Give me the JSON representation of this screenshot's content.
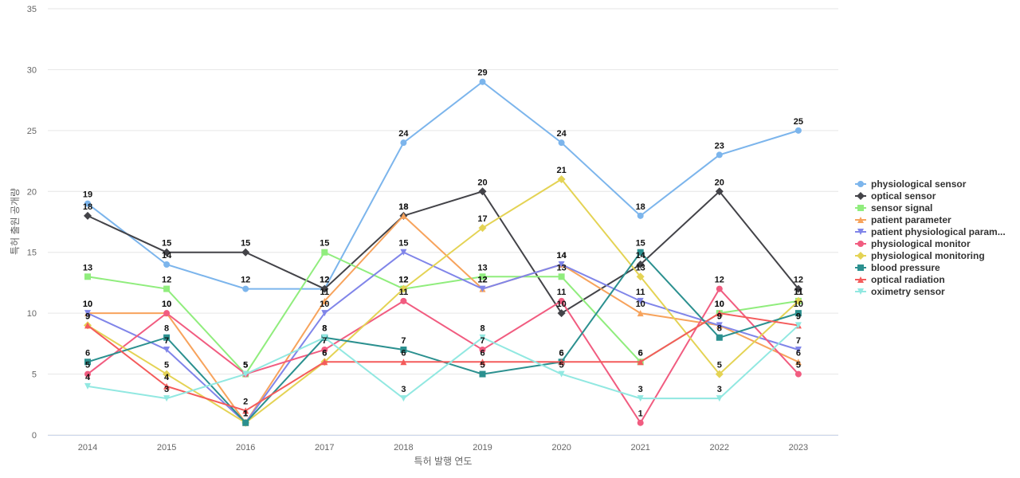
{
  "chart_data": {
    "type": "line",
    "title": "",
    "xlabel": "특허 발행 연도",
    "ylabel": "특허 출원 공개량",
    "ylim": [
      0,
      35
    ],
    "yticks": [
      0,
      5,
      10,
      15,
      20,
      25,
      30,
      35
    ],
    "grid": true,
    "legend_position": "right",
    "x": [
      "2014",
      "2015",
      "2016",
      "2017",
      "2018",
      "2019",
      "2020",
      "2021",
      "2022",
      "2023"
    ],
    "series": [
      {
        "name": "physiological sensor",
        "color": "#7cb5ec",
        "marker": "circle",
        "values": [
          19,
          14,
          12,
          12,
          24,
          29,
          24,
          18,
          23,
          25
        ]
      },
      {
        "name": "optical sensor",
        "color": "#434348",
        "marker": "diamond",
        "values": [
          18,
          15,
          15,
          12,
          18,
          20,
          10,
          14,
          20,
          12
        ]
      },
      {
        "name": "sensor signal",
        "color": "#90ed7d",
        "marker": "square",
        "values": [
          13,
          12,
          5,
          15,
          12,
          13,
          13,
          6,
          10,
          11
        ]
      },
      {
        "name": "patient parameter",
        "color": "#f7a35c",
        "marker": "triangle",
        "values": [
          10,
          10,
          1,
          11,
          18,
          12,
          14,
          10,
          9,
          6
        ]
      },
      {
        "name": "patient physiological param...",
        "color": "#8085e9",
        "marker": "triangle-down",
        "values": [
          10,
          7,
          1,
          10,
          15,
          12,
          14,
          11,
          9,
          7
        ]
      },
      {
        "name": "physiological monitor",
        "color": "#f15c80",
        "marker": "circle",
        "values": [
          5,
          10,
          5,
          7,
          11,
          7,
          11,
          1,
          12,
          5
        ]
      },
      {
        "name": "physiological monitoring",
        "color": "#e4d354",
        "marker": "diamond",
        "values": [
          9,
          5,
          1,
          6,
          12,
          17,
          21,
          13,
          5,
          11
        ]
      },
      {
        "name": "blood pressure",
        "color": "#2b908f",
        "marker": "square",
        "values": [
          6,
          8,
          1,
          8,
          7,
          5,
          6,
          15,
          8,
          10
        ]
      },
      {
        "name": "optical radiation",
        "color": "#f45b5b",
        "marker": "triangle",
        "values": [
          9,
          4,
          2,
          6,
          6,
          6,
          6,
          6,
          10,
          9
        ]
      },
      {
        "name": "oximetry sensor",
        "color": "#91e8e1",
        "marker": "triangle-down",
        "values": [
          4,
          3,
          5,
          8,
          3,
          8,
          5,
          3,
          3,
          9
        ]
      }
    ],
    "point_labels": [
      {
        "series": 0,
        "values": [
          19,
          14,
          12,
          12,
          24,
          29,
          24,
          18,
          23,
          25
        ]
      },
      {
        "series": 1,
        "values": [
          18,
          15,
          15,
          12,
          18,
          20,
          10,
          14,
          20,
          12
        ]
      },
      {
        "series": 2,
        "values": [
          13,
          12,
          5,
          15,
          12,
          13,
          13,
          6,
          10,
          11
        ]
      },
      {
        "series": 3,
        "values": [
          10,
          10,
          1,
          11,
          18,
          12,
          14,
          10,
          9,
          6
        ]
      },
      {
        "series": 4,
        "values": [
          10,
          7,
          1,
          10,
          15,
          12,
          14,
          11,
          9,
          7
        ]
      },
      {
        "series": 5,
        "values": [
          5,
          10,
          5,
          7,
          11,
          7,
          11,
          1,
          12,
          5
        ]
      },
      {
        "series": 6,
        "values": [
          9,
          5,
          1,
          6,
          12,
          17,
          21,
          13,
          5,
          11
        ]
      },
      {
        "series": 7,
        "values": [
          6,
          8,
          1,
          8,
          7,
          5,
          6,
          15,
          8,
          10
        ]
      },
      {
        "series": 8,
        "values": [
          9,
          4,
          2,
          6,
          6,
          6,
          6,
          6,
          10,
          9
        ]
      },
      {
        "series": 9,
        "values": [
          4,
          3,
          5,
          8,
          3,
          8,
          5,
          3,
          3,
          9
        ]
      }
    ]
  }
}
